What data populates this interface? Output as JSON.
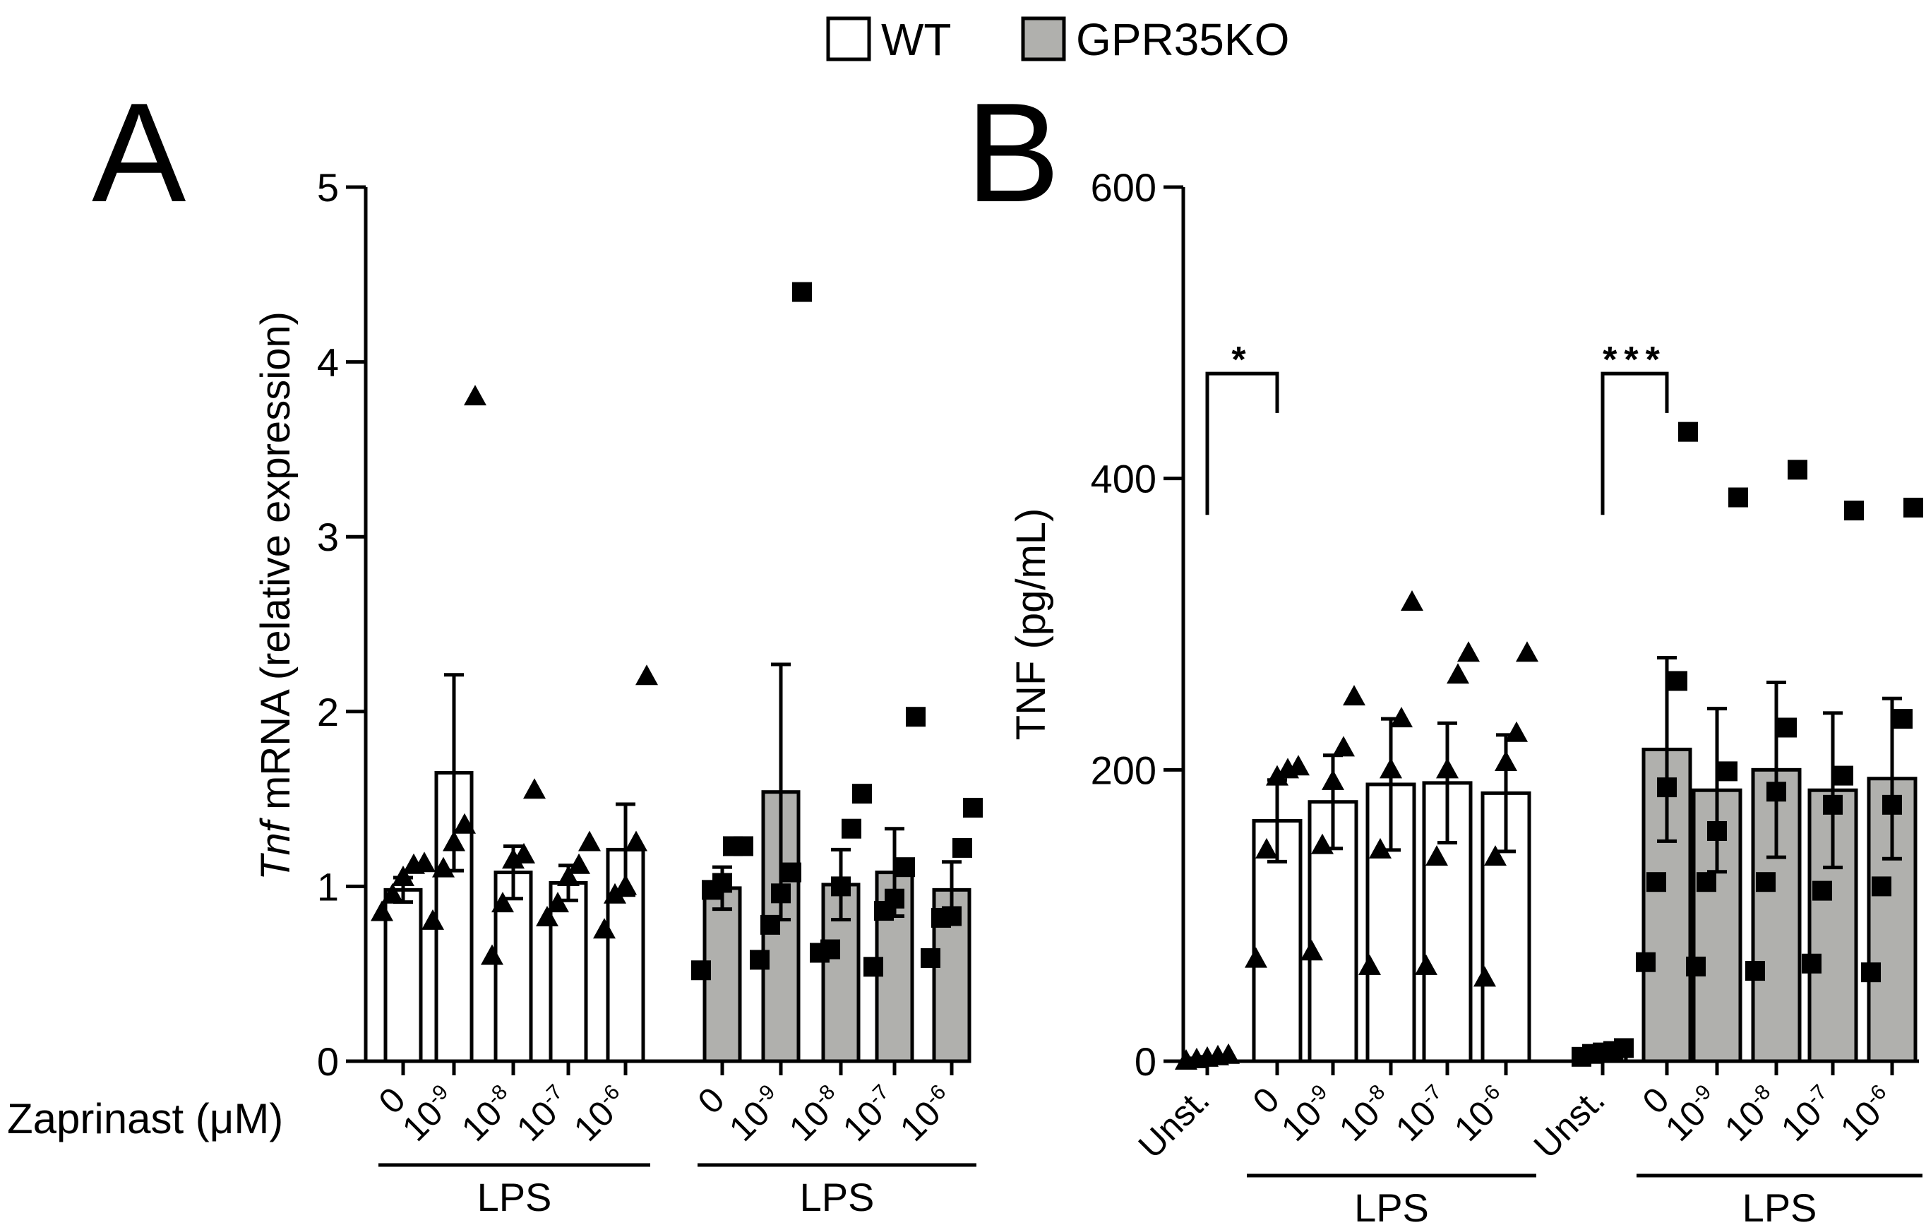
{
  "legend": {
    "items": [
      {
        "label": "WT",
        "color": "#ffffff"
      },
      {
        "label": "GPR35KO",
        "color": "#b0b0ad"
      }
    ]
  },
  "chart_data": [
    {
      "type": "bar",
      "panel": "A",
      "ylabel_italic": "Tnf",
      "ylabel_rest": " mRNA (relative expression)",
      "xlabel": "Zaprinast (μM)",
      "ylim": [
        0,
        5
      ],
      "yticks": [
        0,
        1,
        2,
        3,
        4,
        5
      ],
      "group_label": "LPS",
      "categories": [
        "0",
        "10-9",
        "10-8",
        "10-7",
        "10-6"
      ],
      "series": [
        {
          "name": "WT",
          "marker": "triangle",
          "values": [
            0.98,
            1.65,
            1.08,
            1.02,
            1.21
          ],
          "sem": [
            0.07,
            0.56,
            0.15,
            0.1,
            0.26
          ],
          "points": [
            [
              0.85,
              0.95,
              1.05,
              1.12,
              1.13
            ],
            [
              0.8,
              1.1,
              1.25,
              1.35,
              3.8
            ],
            [
              0.6,
              0.9,
              1.15,
              1.18,
              1.55
            ],
            [
              0.82,
              0.9,
              1.05,
              1.12,
              1.25
            ],
            [
              0.75,
              0.95,
              1.0,
              1.25,
              2.2
            ]
          ]
        },
        {
          "name": "GPR35KO",
          "marker": "square",
          "values": [
            0.99,
            1.54,
            1.01,
            1.08,
            0.98
          ],
          "sem": [
            0.12,
            0.73,
            0.2,
            0.25,
            0.16
          ],
          "points": [
            [
              0.52,
              0.98,
              1.02,
              1.23,
              1.23
            ],
            [
              0.58,
              0.78,
              0.96,
              1.08,
              4.4
            ],
            [
              0.62,
              0.64,
              1.0,
              1.33,
              1.53
            ],
            [
              0.54,
              0.86,
              0.93,
              1.11,
              1.97
            ],
            [
              0.59,
              0.82,
              0.83,
              1.22,
              1.45
            ]
          ]
        }
      ]
    },
    {
      "type": "bar",
      "panel": "B",
      "ylabel": "TNF (pg/mL)",
      "ylim": [
        0,
        600
      ],
      "yticks": [
        0,
        200,
        400,
        600
      ],
      "group_label": "LPS",
      "categories": [
        "Unst.",
        "0",
        "10-9",
        "10-8",
        "10-7",
        "10-6"
      ],
      "series": [
        {
          "name": "WT",
          "marker": "triangle",
          "values": [
            2,
            165,
            178,
            190,
            191,
            184
          ],
          "sem": [
            1,
            28,
            32,
            45,
            41,
            40
          ],
          "points": [
            [
              0,
              1,
              2,
              3,
              4
            ],
            [
              70,
              145,
              195,
              200,
              202
            ],
            [
              75,
              148,
              192,
              215,
              250
            ],
            [
              65,
              145,
              200,
              235,
              315
            ],
            [
              65,
              140,
              200,
              265,
              280
            ],
            [
              57,
              140,
              205,
              225,
              280
            ]
          ]
        },
        {
          "name": "GPR35KO",
          "marker": "square",
          "values": [
            7,
            214,
            186,
            200,
            186,
            194
          ],
          "sem": [
            2,
            63,
            56,
            60,
            53,
            55
          ],
          "points": [
            [
              3,
              5,
              6,
              7,
              9
            ],
            [
              68,
              123,
              188,
              261,
              432
            ],
            [
              65,
              123,
              158,
              199,
              387
            ],
            [
              62,
              123,
              185,
              229,
              406
            ],
            [
              67,
              117,
              176,
              196,
              378
            ],
            [
              61,
              120,
              176,
              235,
              380
            ]
          ]
        }
      ],
      "significance": [
        {
          "series": "WT",
          "label": "*"
        },
        {
          "series": "GPR35KO",
          "label": "***"
        }
      ]
    }
  ]
}
